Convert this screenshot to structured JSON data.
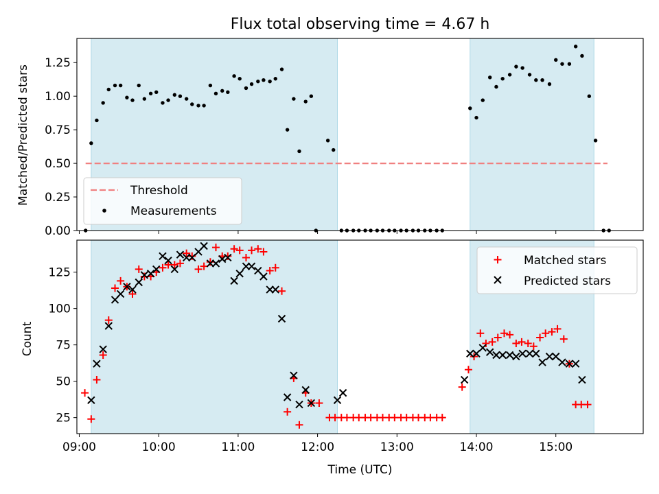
{
  "chart_data": [
    {
      "type": "scatter",
      "title": "Flux total observing time = 4.67 h",
      "xlabel": "",
      "ylabel": "Matched/Predicted stars",
      "xlim": [
        8.97,
        16.1
      ],
      "ylim": [
        0,
        1.43
      ],
      "yticks": [
        0.0,
        0.25,
        0.5,
        0.75,
        1.0,
        1.25
      ],
      "ytick_labels": [
        "0.00",
        "0.25",
        "0.50",
        "0.75",
        "1.00",
        "1.25"
      ],
      "grid": false,
      "legend_position": "lower-left",
      "shaded_intervals": [
        [
          9.15,
          12.25
        ],
        [
          13.92,
          15.48
        ]
      ],
      "threshold": {
        "name": "Threshold",
        "value": 0.5,
        "x_range": [
          9.08,
          15.65
        ],
        "color": "#f08080"
      },
      "series": [
        {
          "name": "Measurements",
          "color": "#000000",
          "marker": "dot",
          "points": [
            [
              9.08,
              0.0
            ],
            [
              9.15,
              0.65
            ],
            [
              9.22,
              0.82
            ],
            [
              9.3,
              0.95
            ],
            [
              9.37,
              1.05
            ],
            [
              9.45,
              1.08
            ],
            [
              9.52,
              1.08
            ],
            [
              9.6,
              0.99
            ],
            [
              9.67,
              0.97
            ],
            [
              9.75,
              1.08
            ],
            [
              9.82,
              0.98
            ],
            [
              9.9,
              1.02
            ],
            [
              9.97,
              1.03
            ],
            [
              10.05,
              0.95
            ],
            [
              10.12,
              0.97
            ],
            [
              10.2,
              1.01
            ],
            [
              10.27,
              1.0
            ],
            [
              10.35,
              0.98
            ],
            [
              10.42,
              0.94
            ],
            [
              10.5,
              0.93
            ],
            [
              10.57,
              0.93
            ],
            [
              10.65,
              1.08
            ],
            [
              10.72,
              1.02
            ],
            [
              10.8,
              1.04
            ],
            [
              10.87,
              1.03
            ],
            [
              10.95,
              1.15
            ],
            [
              11.02,
              1.13
            ],
            [
              11.1,
              1.06
            ],
            [
              11.17,
              1.09
            ],
            [
              11.25,
              1.11
            ],
            [
              11.32,
              1.12
            ],
            [
              11.4,
              1.11
            ],
            [
              11.47,
              1.13
            ],
            [
              11.55,
              1.2
            ],
            [
              11.62,
              0.75
            ],
            [
              11.7,
              0.98
            ],
            [
              11.77,
              0.59
            ],
            [
              11.85,
              0.96
            ],
            [
              11.92,
              1.0
            ],
            [
              11.98,
              0.0
            ],
            [
              12.13,
              0.67
            ],
            [
              12.2,
              0.6
            ],
            [
              12.3,
              0.0
            ],
            [
              12.37,
              0.0
            ],
            [
              12.45,
              0.0
            ],
            [
              12.52,
              0.0
            ],
            [
              12.6,
              0.0
            ],
            [
              12.67,
              0.0
            ],
            [
              12.75,
              0.0
            ],
            [
              12.82,
              0.0
            ],
            [
              12.9,
              0.0
            ],
            [
              12.97,
              0.0
            ],
            [
              13.05,
              0.0
            ],
            [
              13.12,
              0.0
            ],
            [
              13.2,
              0.0
            ],
            [
              13.27,
              0.0
            ],
            [
              13.35,
              0.0
            ],
            [
              13.42,
              0.0
            ],
            [
              13.5,
              0.0
            ],
            [
              13.57,
              0.0
            ],
            [
              13.92,
              0.91
            ],
            [
              14.0,
              0.84
            ],
            [
              14.08,
              0.97
            ],
            [
              14.17,
              1.14
            ],
            [
              14.25,
              1.07
            ],
            [
              14.33,
              1.13
            ],
            [
              14.42,
              1.16
            ],
            [
              14.5,
              1.22
            ],
            [
              14.58,
              1.21
            ],
            [
              14.67,
              1.16
            ],
            [
              14.75,
              1.12
            ],
            [
              14.83,
              1.12
            ],
            [
              14.92,
              1.09
            ],
            [
              15.0,
              1.27
            ],
            [
              15.08,
              1.24
            ],
            [
              15.17,
              1.24
            ],
            [
              15.25,
              1.37
            ],
            [
              15.33,
              1.3
            ],
            [
              15.42,
              1.0
            ],
            [
              15.5,
              0.67
            ],
            [
              15.6,
              0.0
            ],
            [
              15.67,
              0.0
            ]
          ]
        }
      ]
    },
    {
      "type": "scatter",
      "title": "",
      "xlabel": "Time (UTC)",
      "ylabel": "Count",
      "xlim": [
        8.97,
        16.1
      ],
      "ylim": [
        14,
        147
      ],
      "yticks": [
        25,
        50,
        75,
        100,
        125
      ],
      "ytick_labels": [
        "25",
        "50",
        "75",
        "100",
        "125"
      ],
      "xticks": [
        9,
        10,
        11,
        12,
        13,
        14,
        15
      ],
      "xtick_labels": [
        "09:00",
        "10:00",
        "11:00",
        "12:00",
        "13:00",
        "14:00",
        "15:00"
      ],
      "grid": false,
      "legend_position": "top-right",
      "shaded_intervals": [
        [
          9.15,
          12.25
        ],
        [
          13.92,
          15.48
        ]
      ],
      "series": [
        {
          "name": "Matched stars",
          "color": "#ff0000",
          "marker": "plus",
          "points": [
            [
              9.07,
              42
            ],
            [
              9.15,
              24
            ],
            [
              9.22,
              51
            ],
            [
              9.3,
              68
            ],
            [
              9.37,
              92
            ],
            [
              9.45,
              114
            ],
            [
              9.52,
              119
            ],
            [
              9.6,
              115
            ],
            [
              9.67,
              110
            ],
            [
              9.75,
              127
            ],
            [
              9.82,
              122
            ],
            [
              9.9,
              122
            ],
            [
              9.97,
              125
            ],
            [
              10.05,
              128
            ],
            [
              10.12,
              130
            ],
            [
              10.2,
              130
            ],
            [
              10.27,
              131
            ],
            [
              10.35,
              138
            ],
            [
              10.42,
              136
            ],
            [
              10.5,
              127
            ],
            [
              10.57,
              129
            ],
            [
              10.65,
              132
            ],
            [
              10.72,
              142
            ],
            [
              10.8,
              136
            ],
            [
              10.87,
              136
            ],
            [
              10.95,
              141
            ],
            [
              11.02,
              140
            ],
            [
              11.1,
              135
            ],
            [
              11.17,
              140
            ],
            [
              11.25,
              141
            ],
            [
              11.32,
              139
            ],
            [
              11.4,
              126
            ],
            [
              11.47,
              128
            ],
            [
              11.55,
              112
            ],
            [
              11.62,
              29
            ],
            [
              11.7,
              52
            ],
            [
              11.77,
              20
            ],
            [
              11.85,
              42
            ],
            [
              11.92,
              35
            ],
            [
              12.02,
              35
            ],
            [
              12.15,
              25
            ],
            [
              12.22,
              25
            ],
            [
              12.3,
              25
            ],
            [
              12.37,
              25
            ],
            [
              12.45,
              25
            ],
            [
              12.52,
              25
            ],
            [
              12.6,
              25
            ],
            [
              12.67,
              25
            ],
            [
              12.75,
              25
            ],
            [
              12.82,
              25
            ],
            [
              12.9,
              25
            ],
            [
              12.97,
              25
            ],
            [
              13.05,
              25
            ],
            [
              13.12,
              25
            ],
            [
              13.2,
              25
            ],
            [
              13.27,
              25
            ],
            [
              13.35,
              25
            ],
            [
              13.42,
              25
            ],
            [
              13.5,
              25
            ],
            [
              13.57,
              25
            ],
            [
              13.82,
              46
            ],
            [
              13.9,
              58
            ],
            [
              13.97,
              67
            ],
            [
              14.05,
              83
            ],
            [
              14.12,
              76
            ],
            [
              14.2,
              77
            ],
            [
              14.27,
              80
            ],
            [
              14.35,
              83
            ],
            [
              14.42,
              82
            ],
            [
              14.5,
              76
            ],
            [
              14.57,
              77
            ],
            [
              14.65,
              76
            ],
            [
              14.72,
              74
            ],
            [
              14.8,
              80
            ],
            [
              14.87,
              83
            ],
            [
              14.95,
              84
            ],
            [
              15.02,
              86
            ],
            [
              15.1,
              79
            ],
            [
              15.17,
              62
            ],
            [
              15.25,
              34
            ],
            [
              15.32,
              34
            ],
            [
              15.4,
              34
            ]
          ]
        },
        {
          "name": "Predicted stars",
          "color": "#000000",
          "marker": "x",
          "points": [
            [
              9.15,
              37
            ],
            [
              9.22,
              62
            ],
            [
              9.3,
              72
            ],
            [
              9.37,
              88
            ],
            [
              9.45,
              106
            ],
            [
              9.52,
              110
            ],
            [
              9.6,
              115
            ],
            [
              9.67,
              113
            ],
            [
              9.75,
              118
            ],
            [
              9.82,
              123
            ],
            [
              9.9,
              124
            ],
            [
              9.97,
              127
            ],
            [
              10.05,
              136
            ],
            [
              10.12,
              133
            ],
            [
              10.2,
              127
            ],
            [
              10.27,
              137
            ],
            [
              10.35,
              135
            ],
            [
              10.42,
              135
            ],
            [
              10.5,
              139
            ],
            [
              10.57,
              143
            ],
            [
              10.65,
              131
            ],
            [
              10.72,
              131
            ],
            [
              10.8,
              134
            ],
            [
              10.87,
              135
            ],
            [
              10.95,
              119
            ],
            [
              11.02,
              124
            ],
            [
              11.1,
              129
            ],
            [
              11.17,
              129
            ],
            [
              11.25,
              126
            ],
            [
              11.32,
              122
            ],
            [
              11.4,
              113
            ],
            [
              11.47,
              113
            ],
            [
              11.55,
              93
            ],
            [
              11.62,
              39
            ],
            [
              11.7,
              54
            ],
            [
              11.77,
              34
            ],
            [
              11.85,
              44
            ],
            [
              11.92,
              35
            ],
            [
              12.25,
              37
            ],
            [
              12.32,
              42
            ],
            [
              13.85,
              51
            ],
            [
              13.92,
              69
            ],
            [
              14.0,
              69
            ],
            [
              14.08,
              73
            ],
            [
              14.17,
              70
            ],
            [
              14.25,
              68
            ],
            [
              14.33,
              68
            ],
            [
              14.42,
              68
            ],
            [
              14.5,
              67
            ],
            [
              14.58,
              69
            ],
            [
              14.67,
              69
            ],
            [
              14.75,
              69
            ],
            [
              14.83,
              63
            ],
            [
              14.92,
              67
            ],
            [
              15.0,
              67
            ],
            [
              15.08,
              63
            ],
            [
              15.17,
              62
            ],
            [
              15.25,
              62
            ],
            [
              15.33,
              51
            ]
          ]
        }
      ]
    }
  ]
}
